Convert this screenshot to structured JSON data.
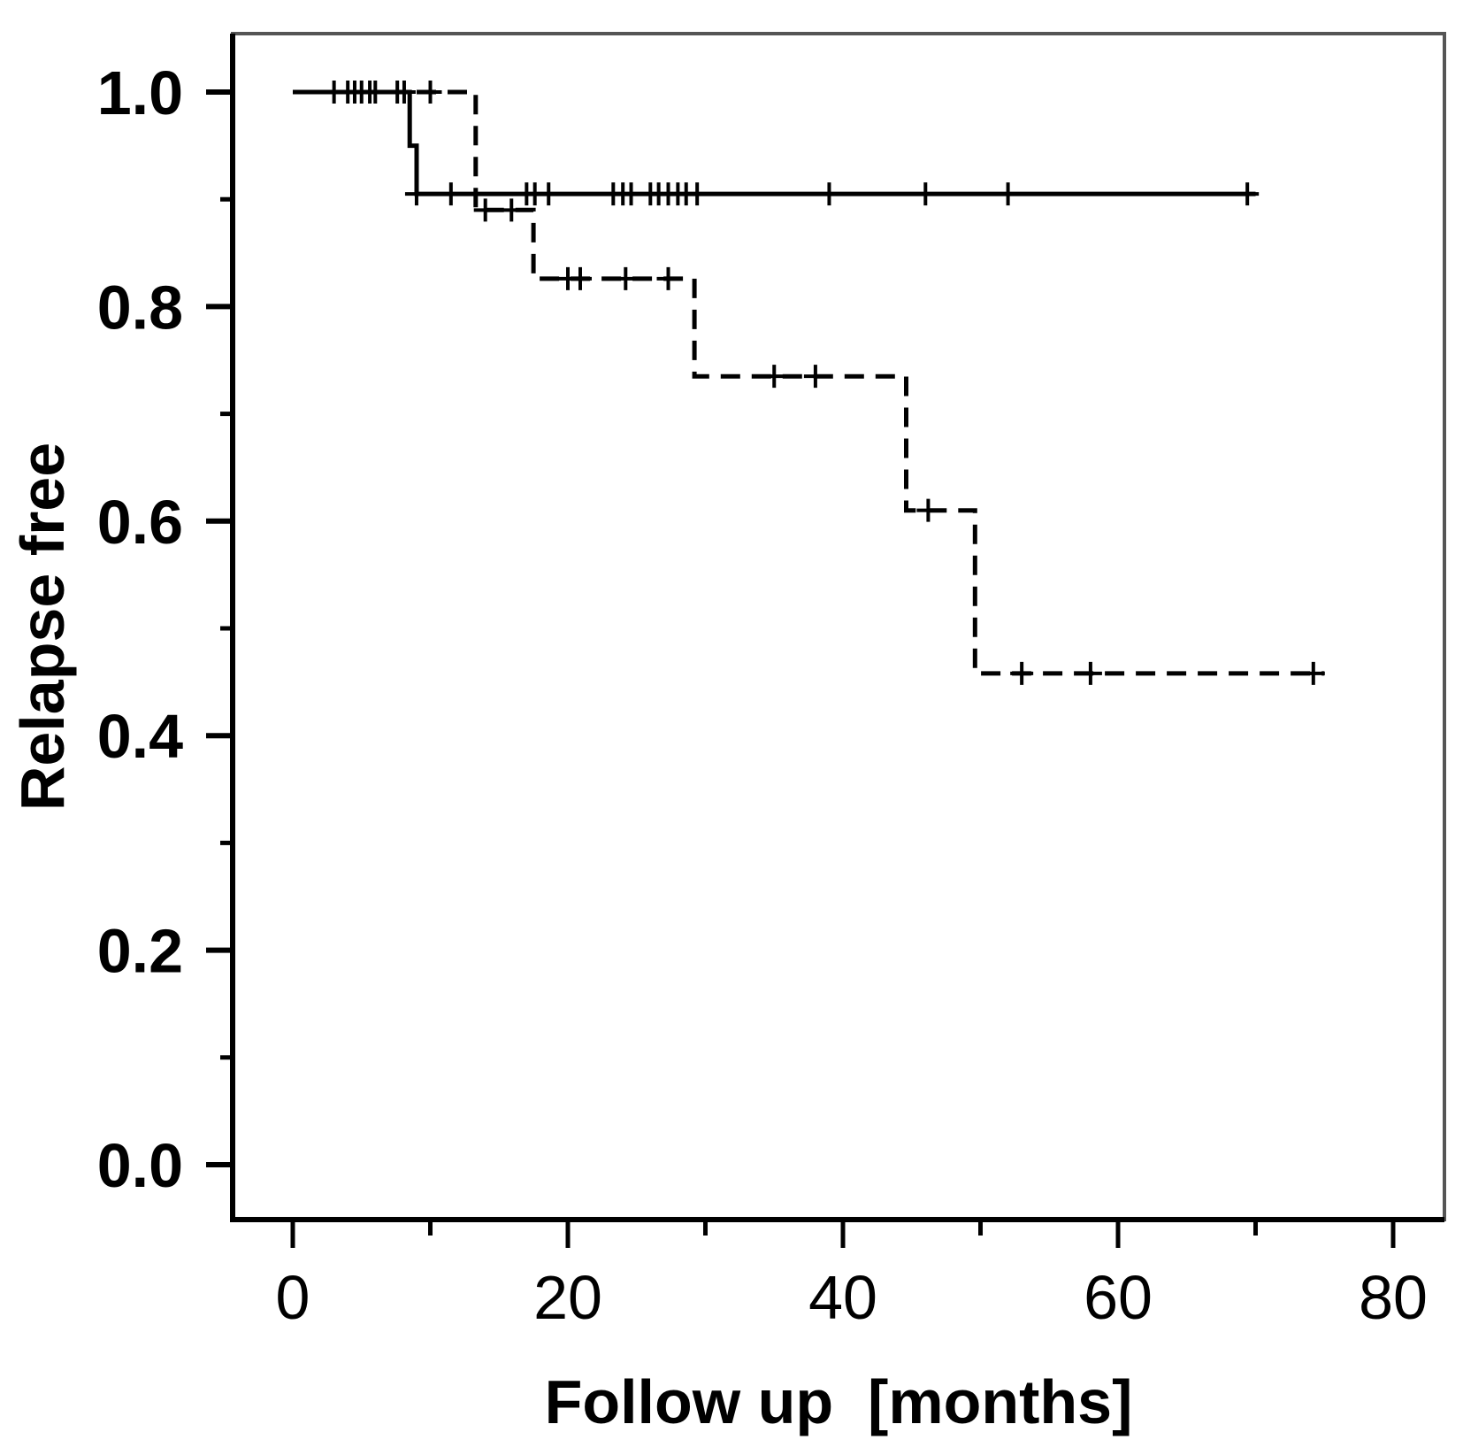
{
  "chart_data": {
    "type": "line",
    "subtype": "kaplan-meier-step",
    "xlabel": "Follow up  [months]",
    "ylabel": "Relapse free",
    "xlim": [
      0,
      80
    ],
    "ylim": [
      0.0,
      1.0
    ],
    "x_ticks": [
      0,
      20,
      40,
      60,
      80
    ],
    "x_minor_ticks": [
      10,
      30,
      50,
      70
    ],
    "x_tick_labels": [
      "0",
      "20",
      "40",
      "60",
      "80"
    ],
    "y_ticks": [
      0.0,
      0.2,
      0.4,
      0.6,
      0.8,
      1.0
    ],
    "y_minor_ticks": [
      0.1,
      0.3,
      0.5,
      0.7,
      0.9
    ],
    "y_tick_labels": [
      "0.0",
      "0.2",
      "0.4",
      "0.6",
      "0.8",
      "1.0"
    ],
    "grid": false,
    "legend": "none",
    "series": [
      {
        "style": "solid",
        "color": "#000000",
        "steps": [
          [
            0,
            1.0
          ],
          [
            8.5,
            1.0
          ],
          [
            8.5,
            0.95
          ],
          [
            9,
            0.95
          ],
          [
            9,
            0.905
          ],
          [
            70,
            0.905
          ]
        ],
        "censored": [
          [
            3,
            1.0
          ],
          [
            4,
            1.0
          ],
          [
            4.5,
            1.0
          ],
          [
            5,
            1.0
          ],
          [
            5.6,
            1.0
          ],
          [
            6,
            1.0
          ],
          [
            7.6,
            1.0
          ],
          [
            8.1,
            1.0
          ],
          [
            9,
            0.905
          ],
          [
            11.5,
            0.905
          ],
          [
            17,
            0.905
          ],
          [
            17.6,
            0.905
          ],
          [
            18.6,
            0.905
          ],
          [
            23.3,
            0.905
          ],
          [
            24,
            0.905
          ],
          [
            24.6,
            0.905
          ],
          [
            26,
            0.905
          ],
          [
            26.6,
            0.905
          ],
          [
            27.3,
            0.905
          ],
          [
            28,
            0.905
          ],
          [
            28.6,
            0.905
          ],
          [
            29.4,
            0.905
          ],
          [
            39,
            0.905
          ],
          [
            46,
            0.905
          ],
          [
            52,
            0.905
          ],
          [
            69.4,
            0.905
          ]
        ]
      },
      {
        "style": "dashed",
        "color": "#000000",
        "steps": [
          [
            0,
            1.0
          ],
          [
            13.3,
            1.0
          ],
          [
            13.3,
            0.89
          ],
          [
            17.5,
            0.89
          ],
          [
            17.5,
            0.826
          ],
          [
            29.2,
            0.826
          ],
          [
            29.2,
            0.735
          ],
          [
            44.6,
            0.735
          ],
          [
            44.6,
            0.61
          ],
          [
            49.6,
            0.61
          ],
          [
            49.6,
            0.458
          ],
          [
            75,
            0.458
          ]
        ],
        "censored": [
          [
            10,
            1.0
          ],
          [
            14,
            0.89
          ],
          [
            15.9,
            0.89
          ],
          [
            20,
            0.826
          ],
          [
            20.9,
            0.826
          ],
          [
            24.2,
            0.826
          ],
          [
            27.3,
            0.826
          ],
          [
            35,
            0.735
          ],
          [
            38,
            0.735
          ],
          [
            46.2,
            0.61
          ],
          [
            53,
            0.458
          ],
          [
            58,
            0.458
          ],
          [
            74.2,
            0.458
          ]
        ]
      }
    ]
  }
}
